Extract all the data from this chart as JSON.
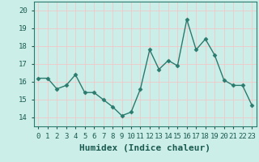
{
  "x": [
    0,
    1,
    2,
    3,
    4,
    5,
    6,
    7,
    8,
    9,
    10,
    11,
    12,
    13,
    14,
    15,
    16,
    17,
    18,
    19,
    20,
    21,
    22,
    23
  ],
  "y": [
    16.2,
    16.2,
    15.6,
    15.8,
    16.4,
    15.4,
    15.4,
    15.0,
    14.6,
    14.1,
    14.3,
    15.6,
    17.8,
    16.7,
    17.2,
    16.9,
    19.5,
    17.8,
    18.4,
    17.5,
    16.1,
    15.8,
    15.8,
    14.7
  ],
  "line_color": "#2b7a6e",
  "marker": "D",
  "marker_size": 2.5,
  "bg_color": "#cceee8",
  "grid_color": "#f0c8c8",
  "xlabel": "Humidex (Indice chaleur)",
  "xlabel_fontsize": 8,
  "ylim": [
    13.5,
    20.5
  ],
  "xlim": [
    -0.5,
    23.5
  ],
  "yticks": [
    14,
    15,
    16,
    17,
    18,
    19,
    20
  ],
  "xticks": [
    0,
    1,
    2,
    3,
    4,
    5,
    6,
    7,
    8,
    9,
    10,
    11,
    12,
    13,
    14,
    15,
    16,
    17,
    18,
    19,
    20,
    21,
    22,
    23
  ],
  "tick_fontsize": 6.5,
  "line_width": 1.0
}
